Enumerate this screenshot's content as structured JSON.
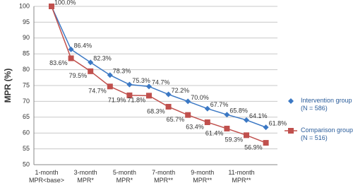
{
  "chart_data": {
    "type": "line",
    "y_label": "MPR (%)",
    "categories": [
      "1-month\nMPR<base>",
      null,
      "3-month\nMPR*",
      null,
      "5-month\nMPR*",
      null,
      "7-month\nMPR**",
      null,
      "9-month\nMPR**",
      null,
      "11-month\nMPR**",
      null
    ],
    "series": [
      {
        "name": "Intervention\ngroup (N = 586)",
        "color": "#3b78c4",
        "marker": "diamond",
        "values": [
          100,
          86.4,
          82.3,
          78.3,
          75.3,
          74.7,
          72.2,
          70,
          67.7,
          65.8,
          64.1,
          61.8
        ],
        "value_labels": [
          "100.0%",
          "86.4%",
          "82.3%",
          "78.3%",
          "75.3%",
          "74.7%",
          "72.2%",
          "70.0%",
          "67.7%",
          "65.8%",
          "64.1%",
          "61.8%"
        ]
      },
      {
        "name": "Comparison\ngroup (N = 516)",
        "color": "#c0504d",
        "marker": "square",
        "values": [
          100,
          83.6,
          79.5,
          74.7,
          71.9,
          71.8,
          68.3,
          65.7,
          63.4,
          61.4,
          59.3,
          56.9
        ],
        "value_labels": [
          null,
          "83.6%",
          "79.5%",
          "74.7%",
          "71.9%",
          "71.8%",
          "68.3%",
          "65.7%",
          "63.4%",
          "61.4%",
          "59.3%",
          "56.9%"
        ]
      }
    ],
    "ylim": [
      50,
      100
    ],
    "yticks": [
      50,
      55,
      60,
      65,
      70,
      75,
      80,
      85,
      90,
      95,
      100
    ],
    "grid": true
  }
}
